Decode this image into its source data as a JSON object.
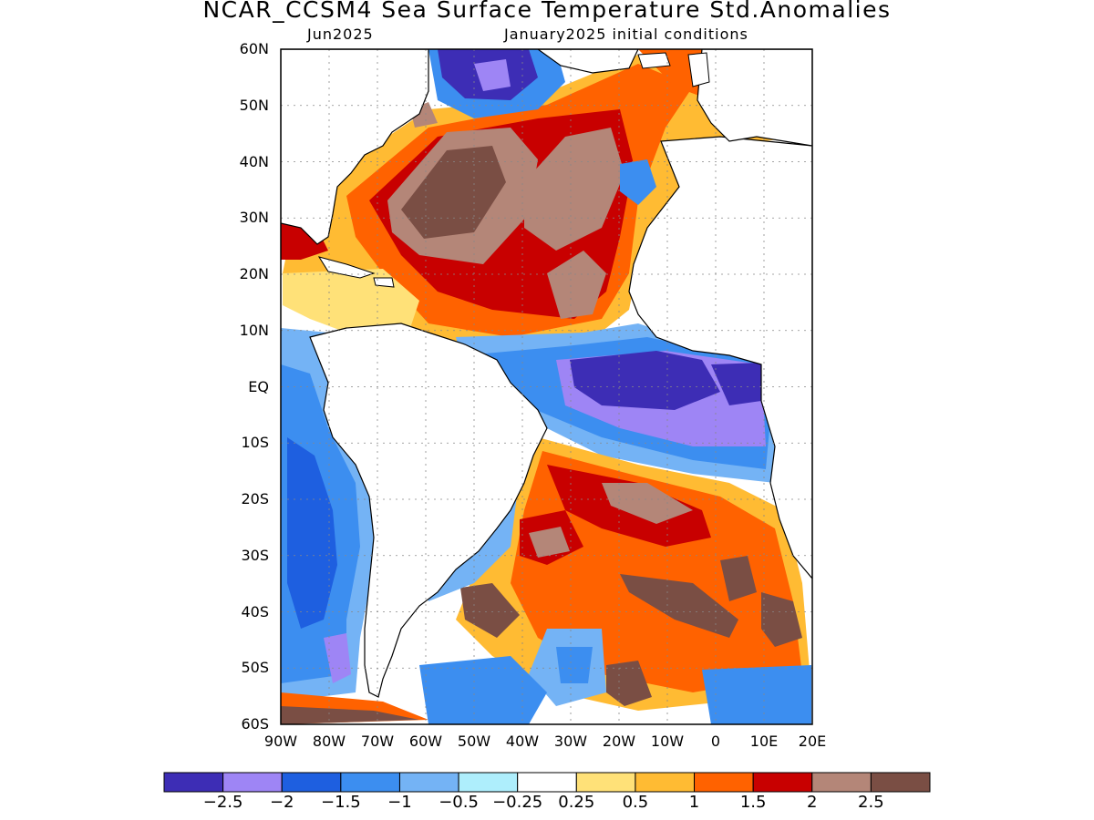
{
  "title": "NCAR_CCSM4 Sea Surface Temperature Std.Anomalies",
  "subtitle_left": "Jun2025",
  "subtitle_right": "January2025 initial conditions",
  "lat_labels": [
    "60N",
    "50N",
    "40N",
    "30N",
    "20N",
    "10N",
    "EQ",
    "10S",
    "20S",
    "30S",
    "40S",
    "50S",
    "60S"
  ],
  "lon_labels": [
    "90W",
    "80W",
    "70W",
    "60W",
    "50W",
    "40W",
    "30W",
    "20W",
    "10W",
    "0",
    "10E",
    "20E"
  ],
  "colorbar": {
    "colors": [
      "#3d2db5",
      "#9e85f5",
      "#1e5fe0",
      "#3c8ef0",
      "#74b3f5",
      "#aeeefc",
      "#ffffff",
      "#ffe178",
      "#ffbb33",
      "#ff6200",
      "#c80000",
      "#b48678",
      "#7a4e44"
    ],
    "labels": [
      "−2.5",
      "−2",
      "−1.5",
      "−1",
      "−0.5",
      "−0.25",
      "0.25",
      "0.5",
      "1",
      "1.5",
      "2",
      "2.5"
    ]
  }
}
